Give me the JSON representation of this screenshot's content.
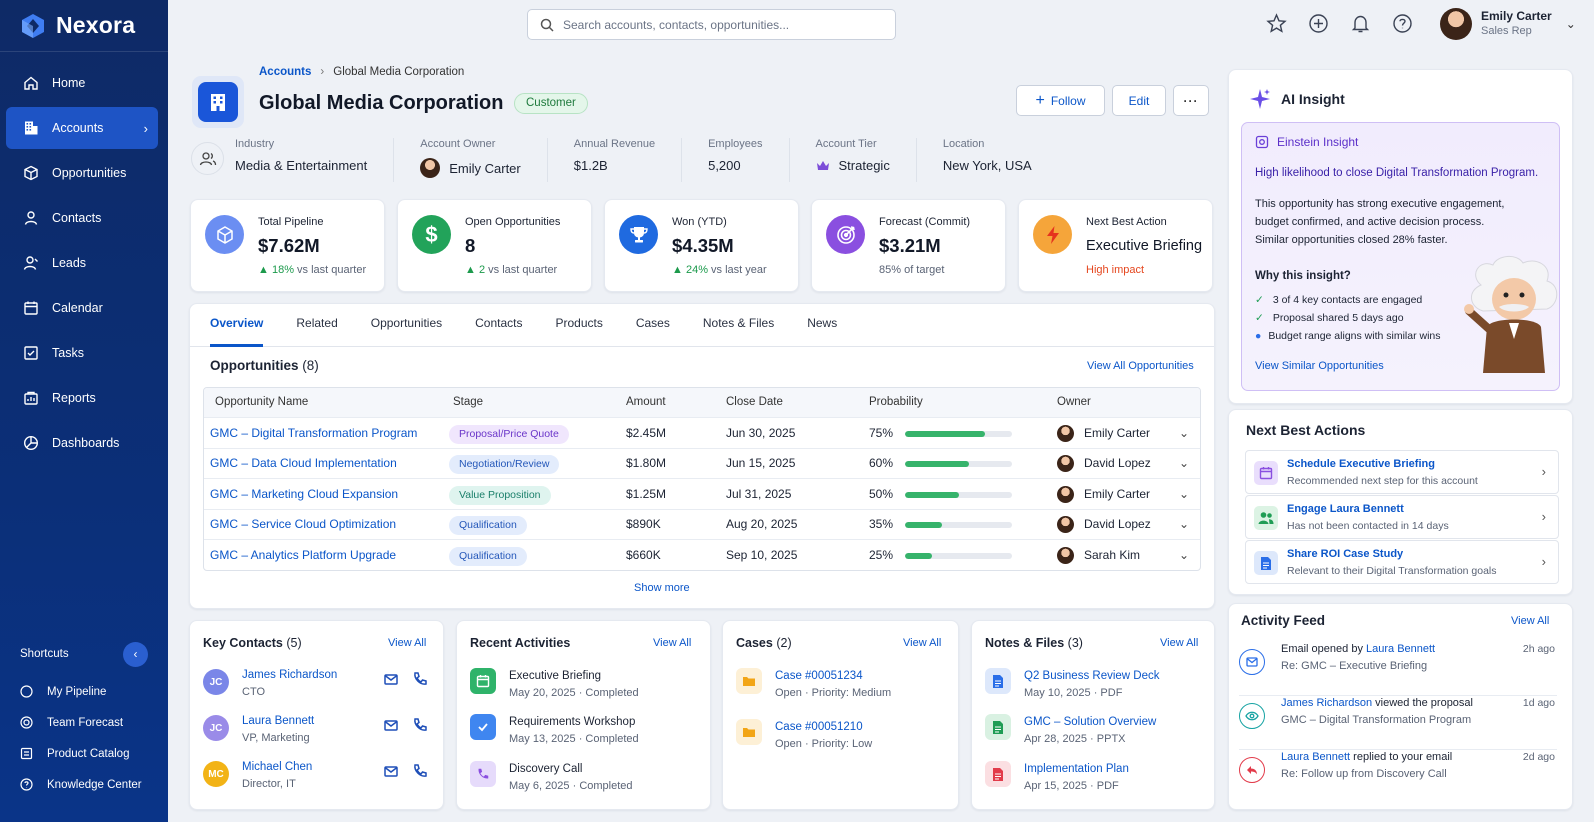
{
  "app": {
    "name": "Nexora"
  },
  "search": {
    "placeholder": "Search accounts, contacts, opportunities..."
  },
  "user": {
    "name": "Emily Carter",
    "role": "Sales Rep"
  },
  "nav": [
    {
      "label": "Home",
      "icon": "home-icon"
    },
    {
      "label": "Accounts",
      "icon": "building-icon",
      "active": true
    },
    {
      "label": "Opportunities",
      "icon": "opportunity-icon"
    },
    {
      "label": "Contacts",
      "icon": "contact-icon"
    },
    {
      "label": "Leads",
      "icon": "lead-icon"
    },
    {
      "label": "Calendar",
      "icon": "calendar-icon"
    },
    {
      "label": "Tasks",
      "icon": "tasks-icon"
    },
    {
      "label": "Reports",
      "icon": "reports-icon"
    },
    {
      "label": "Dashboards",
      "icon": "dashboards-icon"
    }
  ],
  "shortcuts": {
    "title": "Shortcuts",
    "items": [
      "My Pipeline",
      "Team Forecast",
      "Product Catalog",
      "Knowledge Center"
    ]
  },
  "breadcrumb": {
    "parent": "Accounts",
    "current": "Global Media Corporation"
  },
  "account": {
    "name": "Global Media Corporation",
    "status": "Customer",
    "actions": {
      "follow": "Follow",
      "edit": "Edit"
    },
    "facts": [
      {
        "label": "Industry",
        "value": "Media & Entertainment"
      },
      {
        "label": "Account Owner",
        "value": "Emily Carter"
      },
      {
        "label": "Annual Revenue",
        "value": "$1.2B"
      },
      {
        "label": "Employees",
        "value": "5,200"
      },
      {
        "label": "Account Tier",
        "value": "Strategic"
      },
      {
        "label": "Location",
        "value": "New York, USA"
      }
    ]
  },
  "kpis": [
    {
      "title": "Total Pipeline",
      "value": "$7.62M",
      "delta": "18%",
      "note": "vs last quarter",
      "color": "#6b8ef2"
    },
    {
      "title": "Open Opportunities",
      "value": "8",
      "delta": "2",
      "note": "vs last quarter",
      "color": "#22a35a"
    },
    {
      "title": "Won (YTD)",
      "value": "$4.35M",
      "delta": "24%",
      "note": "vs last year",
      "color": "#1f6ae0"
    },
    {
      "title": "Forecast (Commit)",
      "value": "$3.21M",
      "note": "85% of target",
      "color": "#8a4fe0"
    },
    {
      "title": "Next Best Action",
      "value": "Executive Briefing",
      "note": "High impact",
      "color": "#f5a53a"
    }
  ],
  "tabs": [
    "Overview",
    "Related",
    "Opportunities",
    "Contacts",
    "Products",
    "Cases",
    "Notes & Files",
    "News"
  ],
  "opportunities": {
    "title": "Opportunities",
    "count": "(8)",
    "view_all": "View All Opportunities",
    "columns": [
      "Opportunity Name",
      "Stage",
      "Amount",
      "Close Date",
      "Probability",
      "Owner"
    ],
    "rows": [
      {
        "name": "GMC – Digital Transformation Program",
        "stage": "Proposal/Price Quote",
        "amount": "$2.45M",
        "close": "Jun 30, 2025",
        "prob": "75%",
        "prob_value": 0.75,
        "owner": "Emily Carter"
      },
      {
        "name": "GMC – Data Cloud Implementation",
        "stage": "Negotiation/Review",
        "amount": "$1.80M",
        "close": "Jun 15, 2025",
        "prob": "60%",
        "prob_value": 0.6,
        "owner": "David Lopez"
      },
      {
        "name": "GMC – Marketing Cloud Expansion",
        "stage": "Value Proposition",
        "amount": "$1.25M",
        "close": "Jul 31, 2025",
        "prob": "50%",
        "prob_value": 0.5,
        "owner": "Emily Carter"
      },
      {
        "name": "GMC – Service Cloud Optimization",
        "stage": "Qualification",
        "amount": "$890K",
        "close": "Aug 20, 2025",
        "prob": "35%",
        "prob_value": 0.35,
        "owner": "David Lopez"
      },
      {
        "name": "GMC – Analytics Platform Upgrade",
        "stage": "Qualification",
        "amount": "$660K",
        "close": "Sep 10, 2025",
        "prob": "25%",
        "prob_value": 0.25,
        "owner": "Sarah Kim"
      }
    ],
    "show_more": "Show more"
  },
  "key_contacts": {
    "title": "Key Contacts",
    "count": "(5)",
    "view_all": "View All",
    "items": [
      {
        "initials": "JC",
        "name": "James Richardson",
        "role": "CTO",
        "color": "#7a86e8"
      },
      {
        "initials": "JC",
        "name": "Laura Bennett",
        "role": "VP, Marketing",
        "color": "#9a8be8"
      },
      {
        "initials": "MC",
        "name": "Michael Chen",
        "role": "Director, IT",
        "color": "#f2b316"
      }
    ]
  },
  "recent_activities": {
    "title": "Recent Activities",
    "view_all": "View All",
    "items": [
      {
        "title": "Executive Briefing",
        "meta": "May 20, 2025 · Completed"
      },
      {
        "title": "Requirements Workshop",
        "meta": "May 13, 2025 · Completed"
      },
      {
        "title": "Discovery Call",
        "meta": "May 6, 2025 · Completed"
      }
    ]
  },
  "cases": {
    "title": "Cases",
    "count": "(2)",
    "view_all": "View All",
    "items": [
      {
        "title": "Case #00051234",
        "meta": "Open · Priority: Medium"
      },
      {
        "title": "Case #00051210",
        "meta": "Open · Priority: Low"
      }
    ]
  },
  "notes_files": {
    "title": "Notes & Files",
    "count": "(3)",
    "view_all": "View All",
    "items": [
      {
        "title": "Q2 Business Review Deck",
        "meta": "May 10, 2025 · PDF"
      },
      {
        "title": "GMC – Solution Overview",
        "meta": "Apr 28, 2025 · PPTX"
      },
      {
        "title": "Implementation Plan",
        "meta": "Apr 15, 2025 · PDF"
      }
    ]
  },
  "ai_insight": {
    "title": "AI Insight",
    "einstein_title": "Einstein Insight",
    "headline": "High likelihood to close Digital Transformation Program.",
    "body": [
      "This opportunity has strong executive engagement,",
      "budget confirmed, and active decision process.",
      "Similar opportunities closed 28% faster."
    ],
    "why_title": "Why this insight?",
    "reasons": [
      "3 of 4 key contacts are engaged",
      "Proposal shared 5 days ago",
      "Budget range aligns with similar wins"
    ],
    "link": "View Similar Opportunities"
  },
  "next_best_actions": {
    "title": "Next Best Actions",
    "items": [
      {
        "title": "Schedule Executive Briefing",
        "desc": "Recommended next step for this account"
      },
      {
        "title": "Engage Laura Bennett",
        "desc": "Has not been contacted in 14 days"
      },
      {
        "title": "Share ROI Case Study",
        "desc": "Relevant to their Digital Transformation goals"
      }
    ]
  },
  "activity_feed": {
    "title": "Activity Feed",
    "view_all": "View All",
    "items": [
      {
        "pre": "Email opened by ",
        "who": "Laura Bennett",
        "post": "",
        "sub": "Re: GMC – Executive Briefing",
        "time": "2h ago"
      },
      {
        "pre": "",
        "who": "James Richardson",
        "post": " viewed the proposal",
        "sub": "GMC – Digital Transformation Program",
        "time": "1d ago"
      },
      {
        "pre": "",
        "who": "Laura Bennett",
        "post": " replied to your email",
        "sub": "Re: Follow up from Discovery Call",
        "time": "2d ago"
      }
    ]
  }
}
